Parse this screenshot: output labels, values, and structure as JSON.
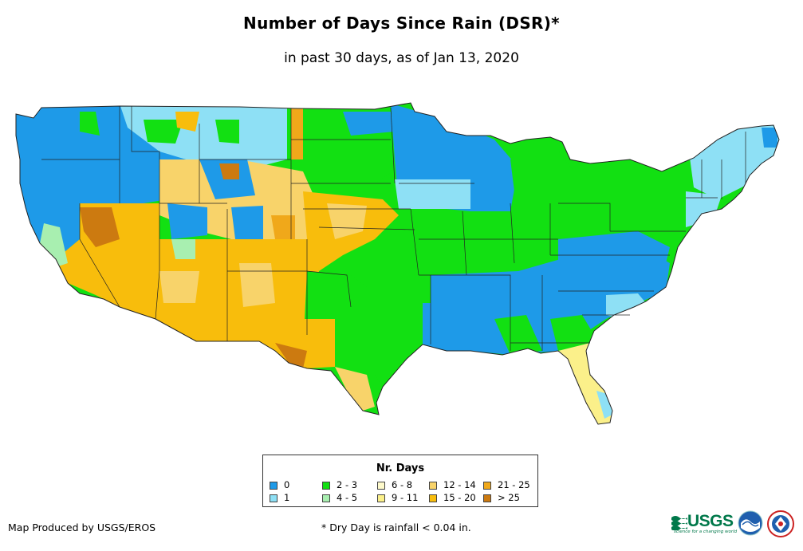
{
  "title": "Number of Days Since Rain (DSR)*",
  "subtitle": "in past 30 days, as of Jan 13, 2020",
  "legend": {
    "title": "Nr. Days",
    "items": [
      {
        "label": "0",
        "color": "#1e9ae8"
      },
      {
        "label": "1",
        "color": "#8ee0f5"
      },
      {
        "label": "2 - 3",
        "color": "#12e012"
      },
      {
        "label": "4 - 5",
        "color": "#a8efb0"
      },
      {
        "label": "6 - 8",
        "color": "#fefacb"
      },
      {
        "label": "9 - 11",
        "color": "#fbf08a"
      },
      {
        "label": "12 - 14",
        "color": "#f8d36a"
      },
      {
        "label": "15 - 20",
        "color": "#f8bd0c"
      },
      {
        "label": "21 - 25",
        "color": "#f0a81a"
      },
      {
        "label": "> 25",
        "color": "#cc7a10"
      }
    ]
  },
  "footer": {
    "producer": "Map Produced by USGS/EROS",
    "note": "* Dry Day is rainfall < 0.04 in."
  },
  "logos": {
    "usgs": "USGS",
    "usgs_tagline": "science for a changing world",
    "noaa": "noaa-logo",
    "nws": "nws-logo"
  }
}
